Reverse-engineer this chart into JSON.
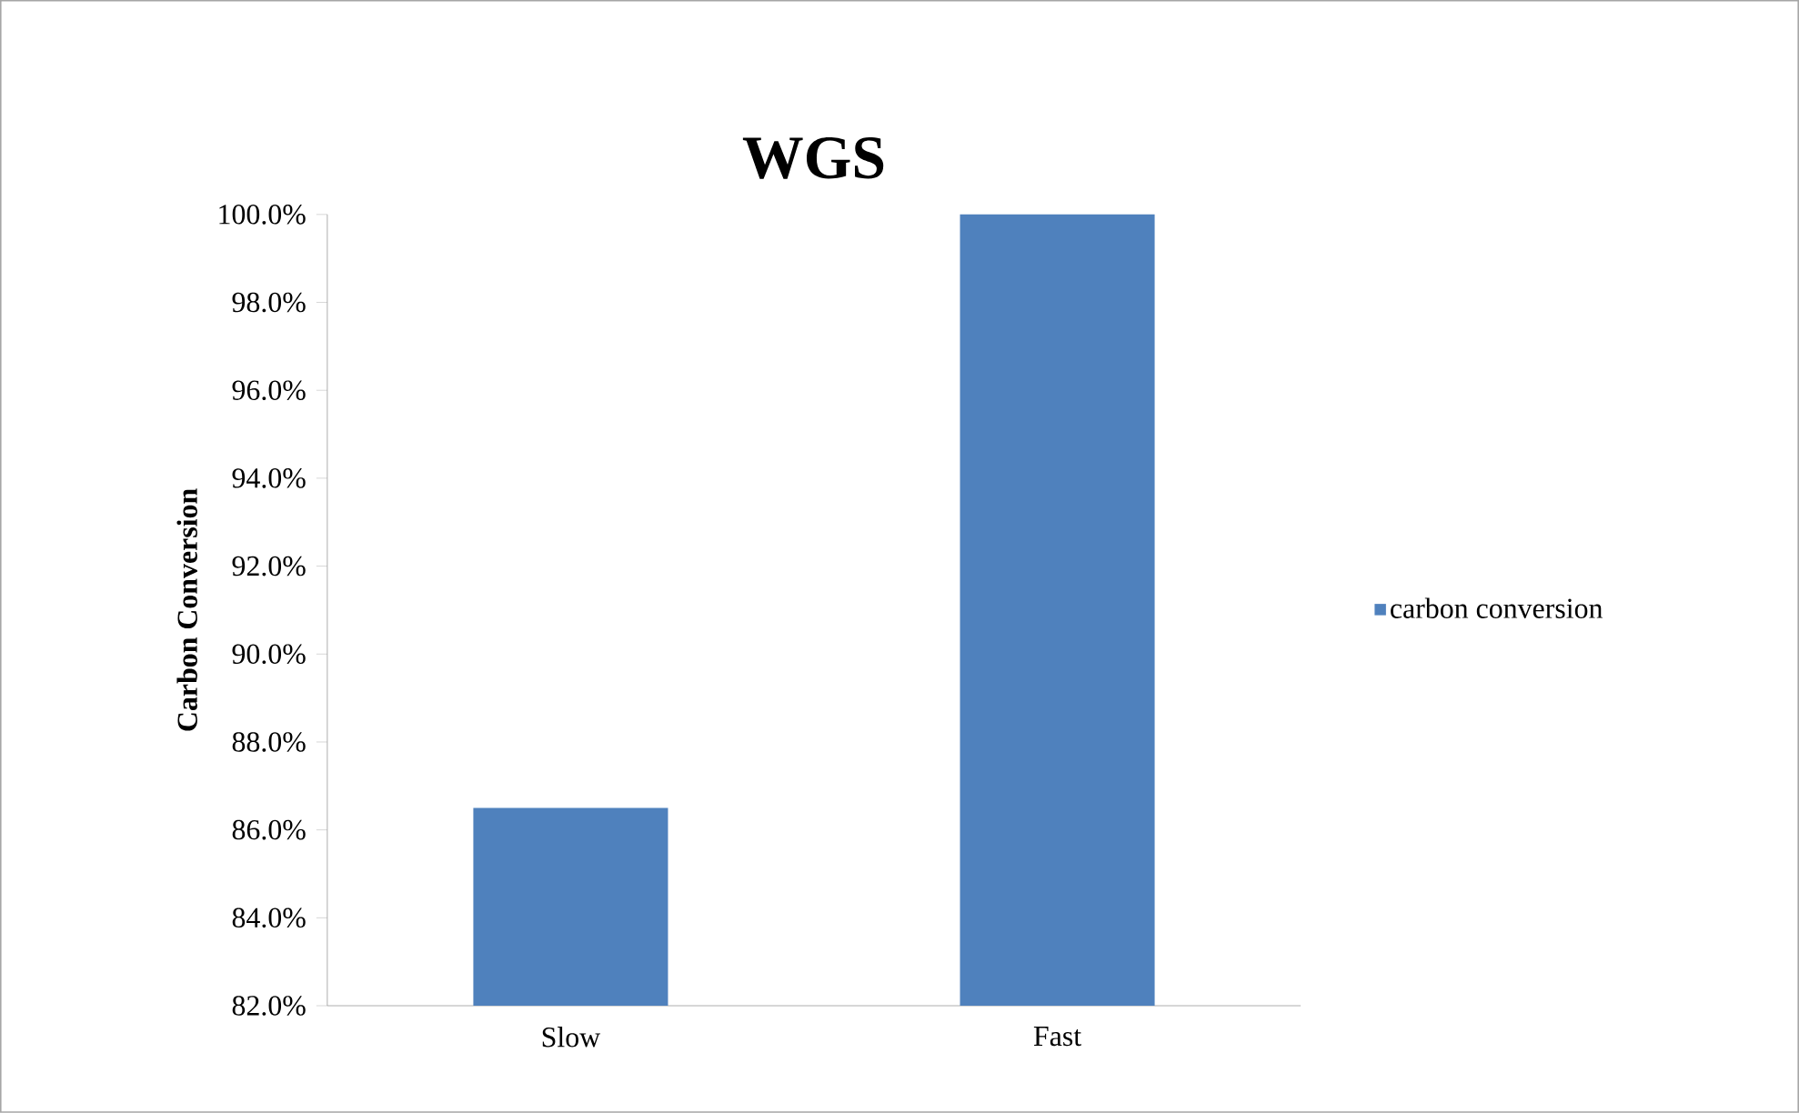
{
  "chart_data": {
    "type": "bar",
    "title": "WGS",
    "ylabel": "Carbon Conversion",
    "categories": [
      "Slow",
      "Fast"
    ],
    "series": [
      {
        "name": "carbon conversion",
        "color": "#4f81bd",
        "values": [
          86.5,
          100.0
        ]
      }
    ],
    "ylim": [
      82,
      100
    ],
    "yticks": [
      {
        "value": 82,
        "label": "82.0%"
      },
      {
        "value": 84,
        "label": "84.0%"
      },
      {
        "value": 86,
        "label": "86.0%"
      },
      {
        "value": 88,
        "label": "88.0%"
      },
      {
        "value": 90,
        "label": "90.0%"
      },
      {
        "value": 92,
        "label": "92.0%"
      },
      {
        "value": 94,
        "label": "94.0%"
      },
      {
        "value": 96,
        "label": "96.0%"
      },
      {
        "value": 98,
        "label": "98.0%"
      },
      {
        "value": 100,
        "label": "100.0%"
      }
    ],
    "grid": false,
    "legend": "right"
  }
}
